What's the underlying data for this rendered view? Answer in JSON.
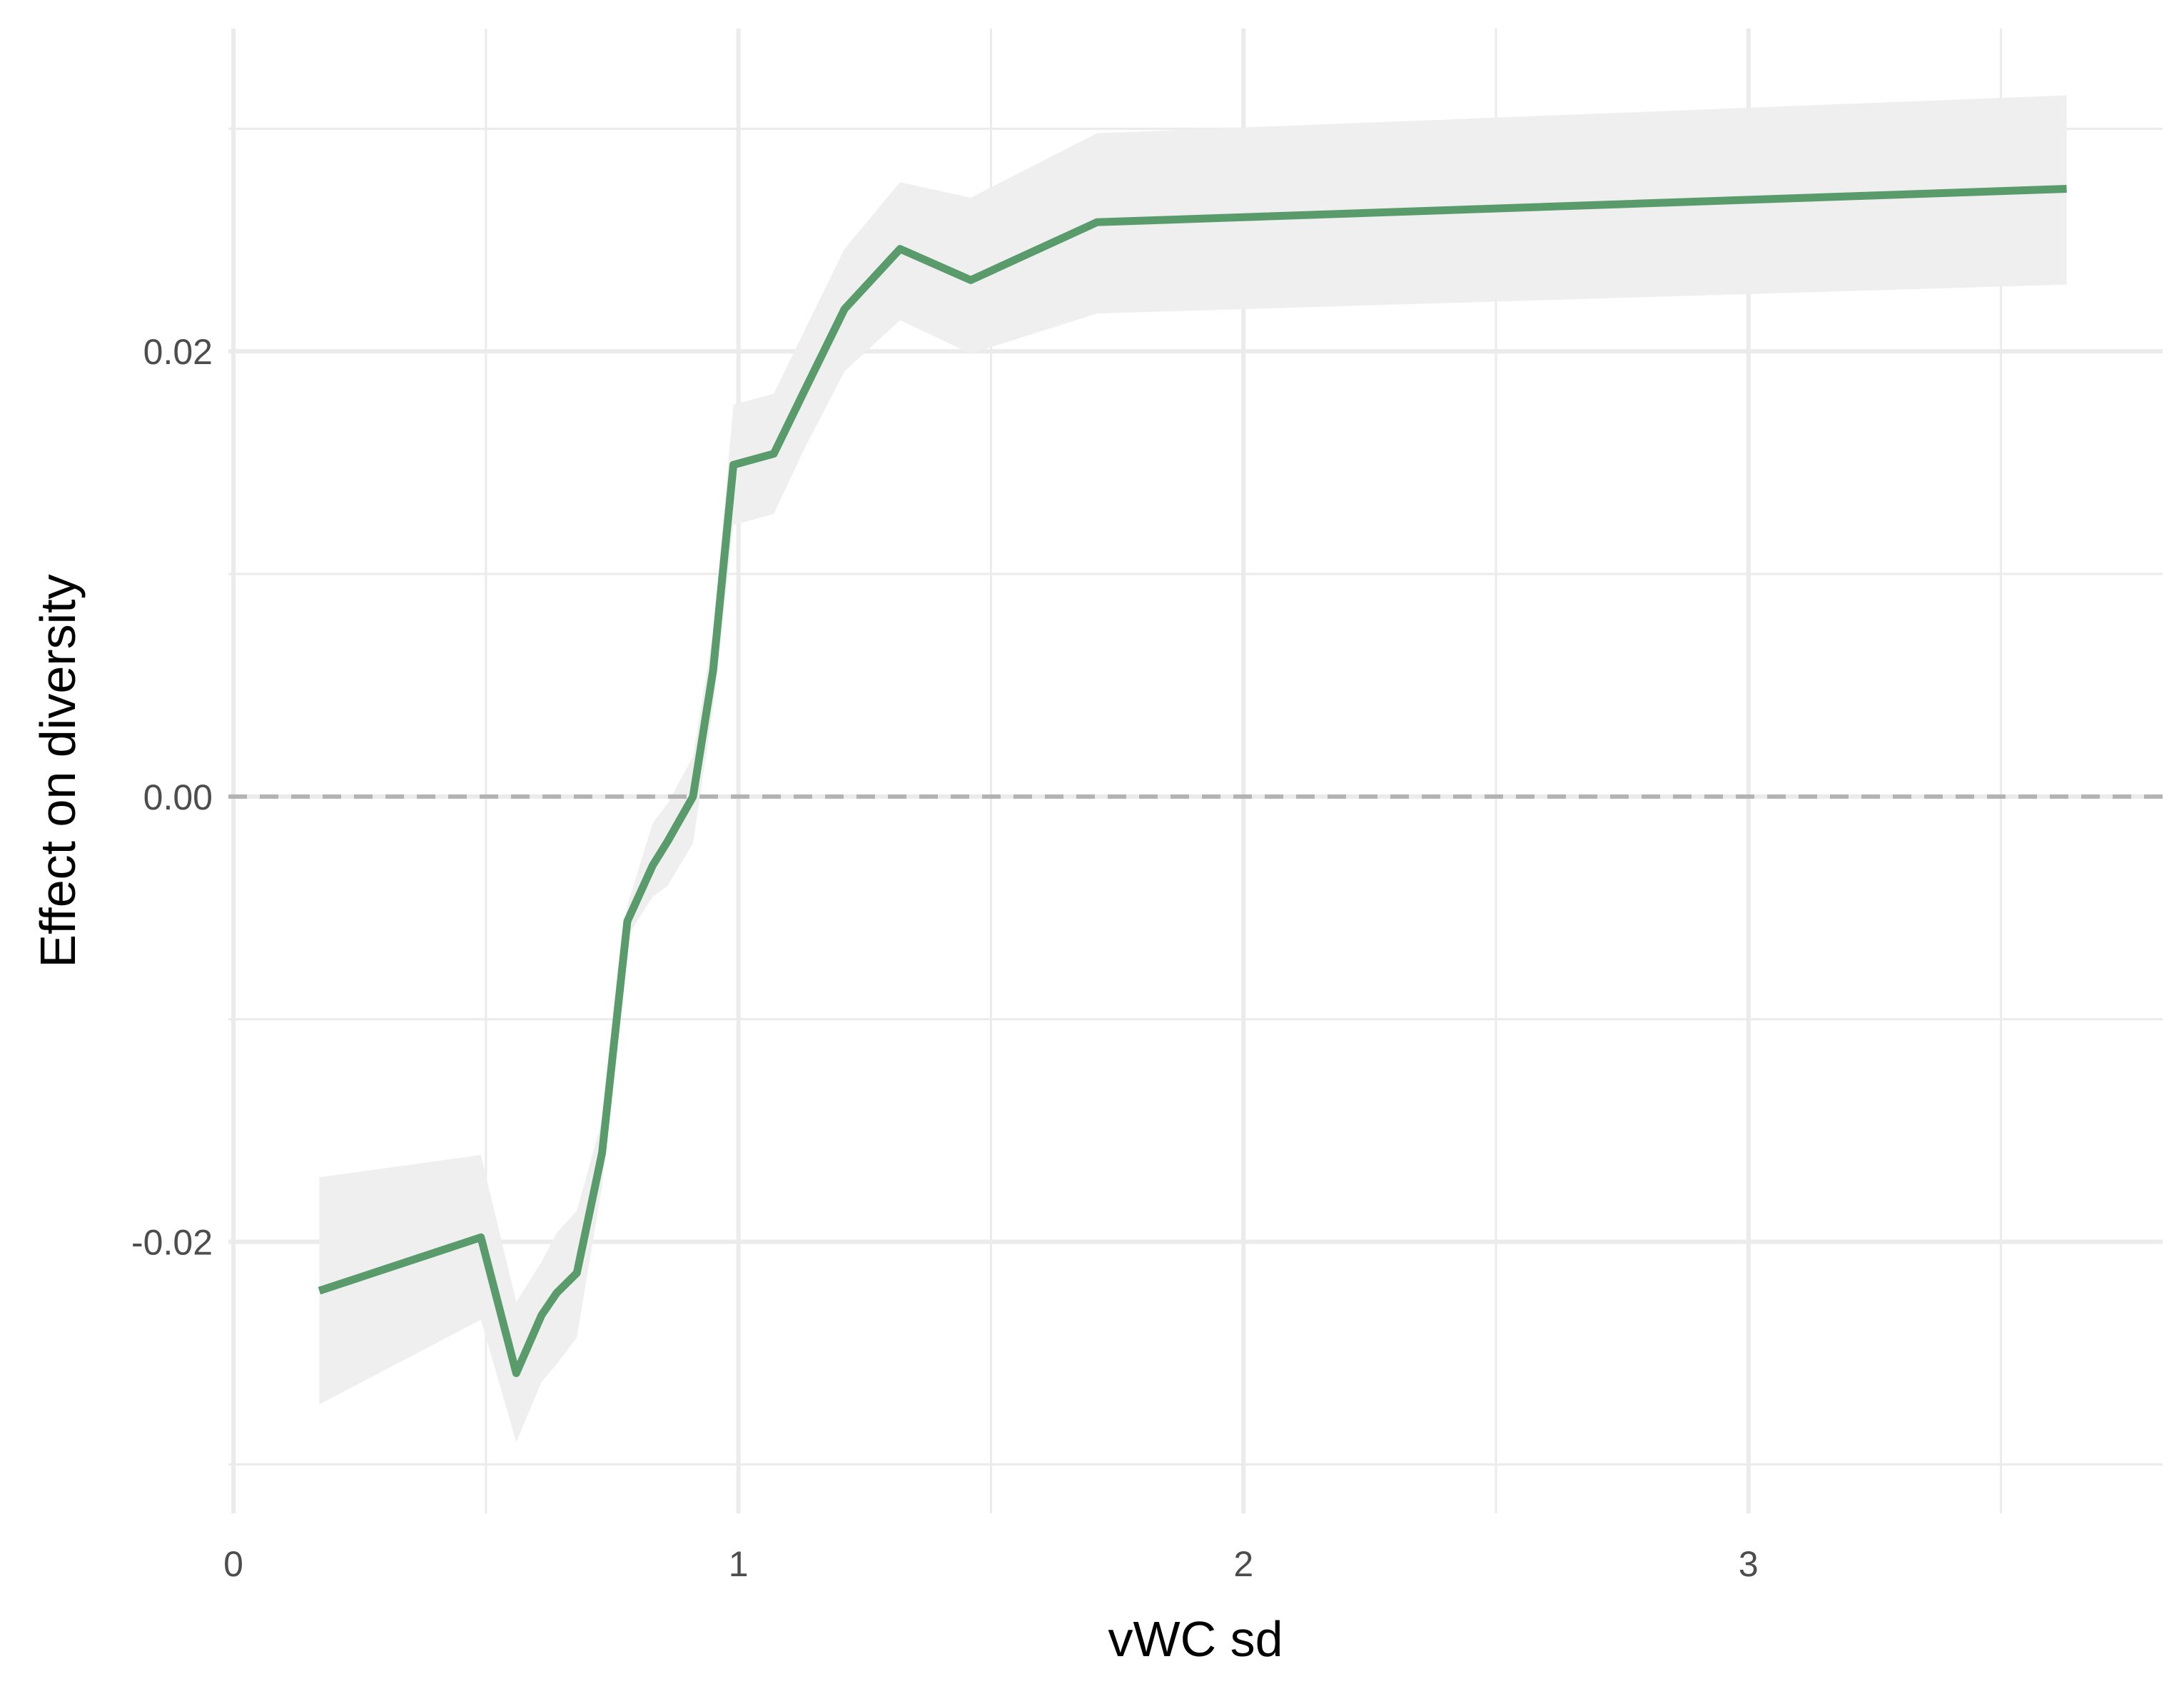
{
  "chart_data": {
    "type": "line",
    "xlabel": "vWC sd",
    "ylabel": "Effect on diversity",
    "xlim": [
      -0.01,
      3.82
    ],
    "ylim": [
      -0.0322,
      0.0345
    ],
    "x_ticks": [
      0,
      1,
      2,
      3
    ],
    "x_tick_labels": [
      "0",
      "1",
      "2",
      "3"
    ],
    "x_minor_ticks": [
      0.5,
      1.5,
      2.5,
      3.5
    ],
    "y_ticks": [
      -0.02,
      0.0,
      0.02
    ],
    "y_tick_labels": [
      "-0.02",
      "0.00",
      "0.02"
    ],
    "y_minor_ticks": [
      -0.03,
      -0.01,
      0.01,
      0.03
    ],
    "grid": true,
    "reference_line": {
      "y": 0,
      "style": "dashed",
      "color": "#b3b3b3"
    },
    "series": [
      {
        "color": "#5a9b6c",
        "ribbon_color": "#efefef",
        "points": [
          {
            "x": 0.17,
            "y": -0.0222,
            "lower": -0.0273,
            "upper": -0.0171
          },
          {
            "x": 0.49,
            "y": -0.0198,
            "lower": -0.0235,
            "upper": -0.0161
          },
          {
            "x": 0.56,
            "y": -0.0259,
            "lower": -0.029,
            "upper": -0.0227
          },
          {
            "x": 0.61,
            "y": -0.0233,
            "lower": -0.0263,
            "upper": -0.0209
          },
          {
            "x": 0.64,
            "y": -0.0223,
            "lower": -0.0255,
            "upper": -0.0196
          },
          {
            "x": 0.68,
            "y": -0.0214,
            "lower": -0.0243,
            "upper": -0.0186
          },
          {
            "x": 0.73,
            "y": -0.016,
            "lower": -0.0175,
            "upper": -0.0145
          },
          {
            "x": 0.78,
            "y": -0.0056,
            "lower": -0.0063,
            "upper": -0.0049
          },
          {
            "x": 0.83,
            "y": -0.0031,
            "lower": -0.0045,
            "upper": -0.0012
          },
          {
            "x": 0.86,
            "y": -0.002,
            "lower": -0.004,
            "upper": -0.0003
          },
          {
            "x": 0.91,
            "y": 0.0,
            "lower": -0.0021,
            "upper": 0.0018
          },
          {
            "x": 0.95,
            "y": 0.0057,
            "lower": 0.004,
            "upper": 0.0074
          },
          {
            "x": 0.99,
            "y": 0.0149,
            "lower": 0.0122,
            "upper": 0.0176
          },
          {
            "x": 1.07,
            "y": 0.0154,
            "lower": 0.0127,
            "upper": 0.0181
          },
          {
            "x": 1.13,
            "y": 0.0182,
            "lower": 0.0156,
            "upper": 0.0209
          },
          {
            "x": 1.21,
            "y": 0.0219,
            "lower": 0.0191,
            "upper": 0.0246
          },
          {
            "x": 1.32,
            "y": 0.0246,
            "lower": 0.0214,
            "upper": 0.0276
          },
          {
            "x": 1.46,
            "y": 0.0232,
            "lower": 0.0199,
            "upper": 0.0269
          },
          {
            "x": 1.71,
            "y": 0.0258,
            "lower": 0.0217,
            "upper": 0.0298
          },
          {
            "x": 3.63,
            "y": 0.0273,
            "lower": 0.023,
            "upper": 0.0315
          }
        ]
      }
    ]
  }
}
